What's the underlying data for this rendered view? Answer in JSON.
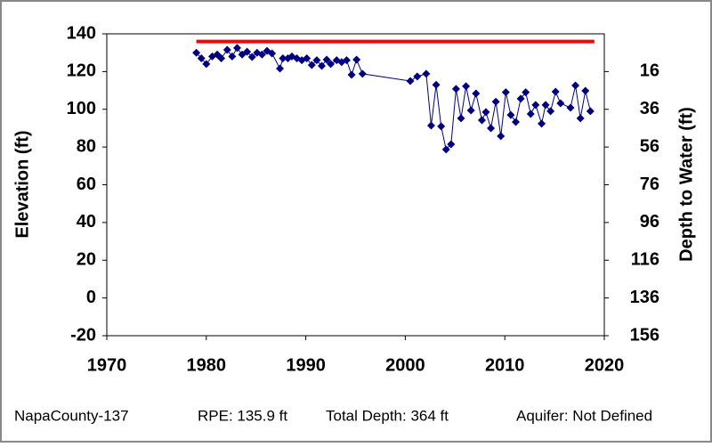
{
  "chart_data": {
    "type": "line",
    "y_label": "Elevation (ft)",
    "y2_label": "Depth to Water (ft)",
    "xlim": [
      1970,
      2020
    ],
    "xticks": [
      1970,
      1980,
      1990,
      2000,
      2010,
      2020
    ],
    "ylim": [
      -20,
      140
    ],
    "yticks": [
      -20,
      0,
      20,
      40,
      60,
      80,
      100,
      120,
      140
    ],
    "y2lim": [
      -4.1,
      155.9
    ],
    "y2_inverted": true,
    "y2ticks": [
      {
        "value": 15.9,
        "label": "16"
      },
      {
        "value": 35.9,
        "label": "36"
      },
      {
        "value": 55.9,
        "label": "56"
      },
      {
        "value": 75.9,
        "label": "76"
      },
      {
        "value": 95.9,
        "label": "96"
      },
      {
        "value": 115.9,
        "label": "116"
      },
      {
        "value": 135.9,
        "label": "136"
      },
      {
        "value": 155.9,
        "label": "156"
      }
    ],
    "series": [
      {
        "color": "#000080",
        "x": [
          1979.0,
          1979.5,
          1980.0,
          1980.6,
          1981.1,
          1981.5,
          1982.1,
          1982.6,
          1983.1,
          1983.6,
          1984.1,
          1984.6,
          1985.1,
          1985.6,
          1986.1,
          1986.6,
          1987.4,
          1987.7,
          1988.2,
          1988.6,
          1989.1,
          1989.6,
          1990.1,
          1990.6,
          1991.1,
          1991.6,
          1992.1,
          1992.5,
          1993.1,
          1993.6,
          1994.1,
          1994.6,
          1995.1,
          1995.7,
          2000.5,
          2001.2,
          2002.1,
          2002.6,
          2003.1,
          2003.6,
          2004.1,
          2004.6,
          2005.1,
          2005.6,
          2006.1,
          2006.6,
          2007.1,
          2007.7,
          2008.1,
          2008.6,
          2009.1,
          2009.6,
          2010.1,
          2010.6,
          2011.1,
          2011.6,
          2012.1,
          2012.6,
          2013.1,
          2013.7,
          2014.1,
          2014.6,
          2015.1,
          2015.6,
          2016.6,
          2017.1,
          2017.6,
          2018.1,
          2018.6
        ],
        "values": [
          130,
          127,
          124,
          128,
          129,
          127,
          131.5,
          128,
          132.5,
          129,
          130.5,
          127.7,
          130,
          129,
          131,
          129.6,
          121.6,
          127,
          127,
          128,
          127,
          126,
          127,
          123.5,
          126,
          123,
          126.3,
          124,
          126,
          125,
          126,
          118.3,
          126.3,
          118.8,
          115,
          117.4,
          118.8,
          91.4,
          113,
          91,
          78.7,
          81.5,
          110.8,
          95.2,
          112.2,
          99.4,
          108.4,
          94.2,
          98.5,
          90,
          104,
          85.8,
          109,
          97,
          93.3,
          105.6,
          109,
          97.5,
          102.3,
          92.4,
          102.3,
          99,
          109.3,
          103.2,
          100.8,
          112.6,
          95.2,
          109.8,
          99
        ]
      }
    ],
    "reference_line": {
      "value": 135.9,
      "color": "#ff0000",
      "x": [
        1979,
        2019
      ]
    },
    "footer": [
      "NapaCounty-137",
      "RPE: 135.9 ft",
      "Total Depth: 364 ft",
      "Aquifer: Not Defined"
    ]
  }
}
